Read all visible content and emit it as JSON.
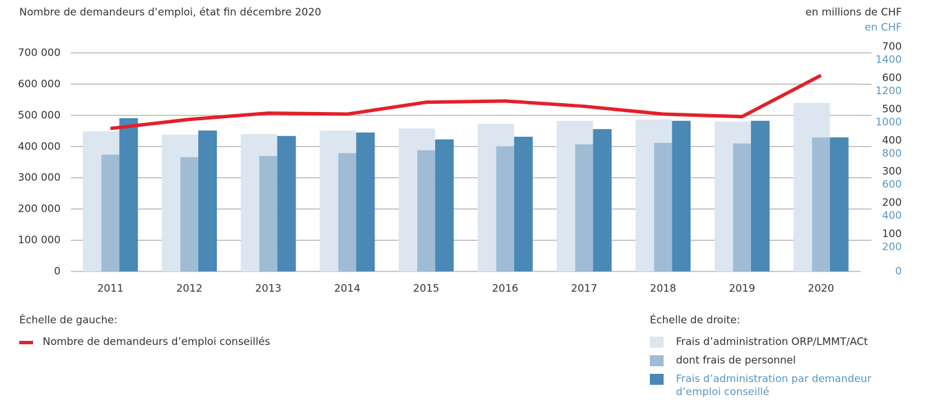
{
  "chart_data": {
    "type": "bar",
    "title": "Nombre de demandeurs d’emploi, état fin décembre 2020",
    "y2_label": "en millions de CHF",
    "y3_label": "en CHF",
    "y3color": "#5a96c0",
    "categories": [
      "2011",
      "2012",
      "2013",
      "2014",
      "2015",
      "2016",
      "2017",
      "2018",
      "2019",
      "2020"
    ],
    "ylim": [
      0,
      700000
    ],
    "yticks": [
      0,
      {
        "value": 100000,
        "label": "100 000"
      },
      {
        "value": 200000,
        "label": "200 000"
      },
      {
        "value": 300000,
        "label": "300 000"
      },
      {
        "value": 400000,
        "label": "400 000"
      },
      {
        "value": 500000,
        "label": "500 000"
      },
      {
        "value": 600000,
        "label": "600 000"
      },
      {
        "value": 700000,
        "label": "700 000"
      }
    ],
    "y2lim": [
      0,
      700
    ],
    "y2ticks": [
      100,
      200,
      300,
      400,
      500,
      600,
      700
    ],
    "y3lim": [
      0,
      1400
    ],
    "y3ticks": [
      0,
      200,
      400,
      600,
      800,
      1000,
      1200,
      1400
    ],
    "grid": true,
    "legend_left_title": "Échelle de gauche:",
    "legend_right_title": "Échelle de droite:",
    "series": [
      {
        "name": "Frais d’administration ORP/LMMT/ACt",
        "type": "bar",
        "axis": "y2",
        "color": "#dce6f0",
        "values": [
          449,
          438,
          440,
          451,
          458,
          473,
          482,
          487,
          480,
          540
        ]
      },
      {
        "name": "dont frais de personnel",
        "type": "bar",
        "axis": "y2",
        "color": "#a0bcd4",
        "values": [
          374,
          366,
          370,
          379,
          388,
          401,
          407,
          412,
          410,
          429
        ]
      },
      {
        "name": "Frais d’administration par demandeur d’emploi conseillé",
        "type": "bar",
        "axis": "y3",
        "color": "#4a88b5",
        "values": [
          982,
          903,
          868,
          890,
          846,
          863,
          912,
          965,
          965,
          859
        ]
      },
      {
        "name": "Nombre de demandeurs d’emploi conseillés",
        "type": "line",
        "axis": "y",
        "color": "#e3202a",
        "values": [
          458000,
          487000,
          507000,
          504000,
          542000,
          546000,
          529000,
          504000,
          496000,
          628000
        ]
      }
    ]
  }
}
